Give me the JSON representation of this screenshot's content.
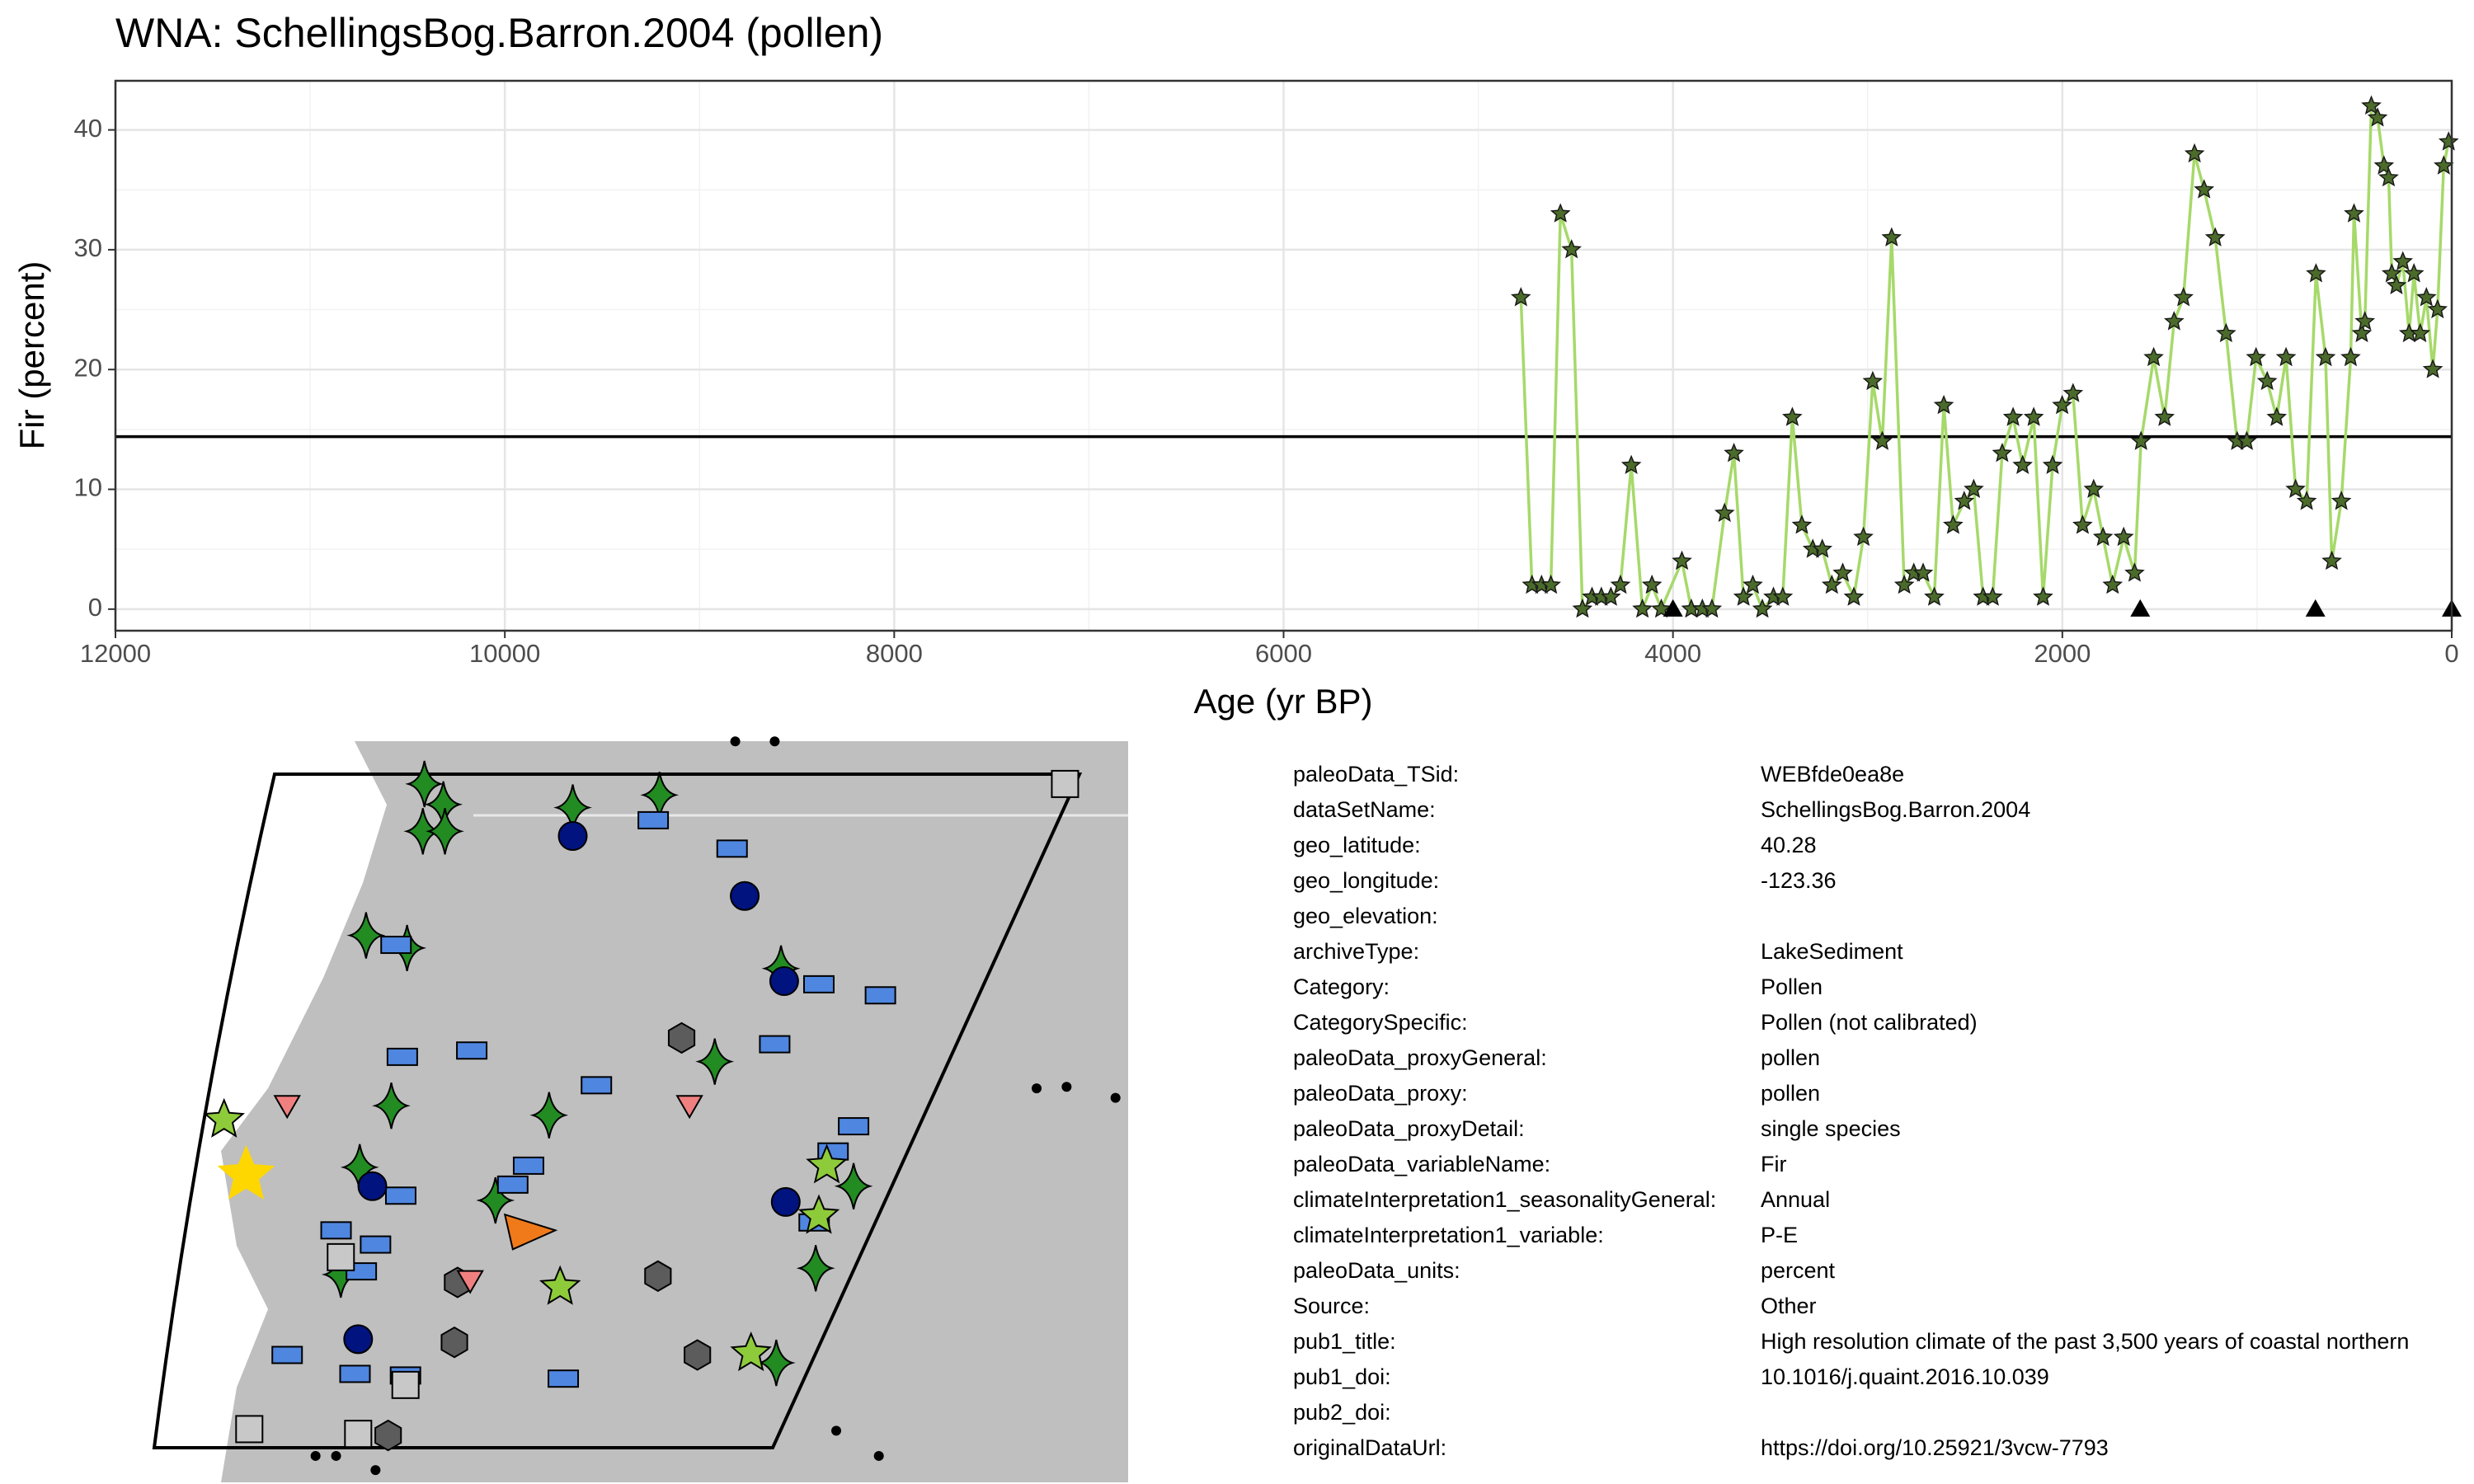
{
  "chart_data": {
    "type": "line",
    "title": "WNA: SchellingsBog.Barron.2004 (pollen)",
    "x_label": "Age (yr BP)",
    "y_label": "Fir (percent)",
    "x": [
      4781,
      4724,
      4675,
      4627,
      4578,
      4521,
      4465,
      4416,
      4368,
      4319,
      4270,
      4214,
      4157,
      4108,
      4060,
      3954,
      3906,
      3849,
      3800,
      3735,
      3687,
      3638,
      3590,
      3541,
      3484,
      3436,
      3387,
      3338,
      3282,
      3233,
      3184,
      3128,
      3071,
      3022,
      2974,
      2925,
      2877,
      2812,
      2763,
      2715,
      2658,
      2609,
      2561,
      2504,
      2455,
      2407,
      2358,
      2309,
      2253,
      2204,
      2147,
      2099,
      2050,
      2001,
      1945,
      1896,
      1839,
      1791,
      1742,
      1685,
      1629,
      1596,
      1531,
      1475,
      1426,
      1378,
      1321,
      1272,
      1215,
      1159,
      1102,
      1053,
      1005,
      948,
      899,
      851,
      802,
      745,
      697,
      648,
      616,
      567,
      519,
      502,
      462,
      446,
      413,
      381,
      348,
      324,
      308,
      284,
      251,
      219,
      194,
      162,
      130,
      97,
      73,
      41,
      16
    ],
    "values": [
      26,
      2,
      2,
      2,
      33,
      30,
      0,
      1,
      1,
      1,
      2,
      12,
      0,
      2,
      0,
      4,
      0,
      0,
      0,
      8,
      13,
      1,
      2,
      0,
      1,
      1,
      16,
      7,
      5,
      5,
      2,
      3,
      1,
      6,
      19,
      14,
      31,
      2,
      3,
      3,
      1,
      17,
      7,
      9,
      10,
      1,
      1,
      13,
      16,
      12,
      16,
      1,
      12,
      17,
      18,
      7,
      10,
      6,
      2,
      6,
      3,
      14,
      21,
      16,
      24,
      26,
      38,
      35,
      31,
      23,
      14,
      14,
      21,
      19,
      16,
      21,
      10,
      9,
      28,
      21,
      4,
      9,
      21,
      33,
      23,
      24,
      42,
      41,
      37,
      36,
      28,
      27,
      29,
      23,
      28,
      23,
      26,
      20,
      25,
      37,
      39
    ],
    "color": "#a6d96a",
    "marker_color": "#4b6b2a",
    "mean": 14.4,
    "age_markers": {
      "x": [
        4000,
        1600,
        700,
        0
      ],
      "values": [
        0,
        0,
        0,
        0
      ]
    },
    "xlim": [
      12000,
      0
    ],
    "xticks": [
      12000,
      10000,
      8000,
      6000,
      4000,
      2000,
      0
    ],
    "ylim": [
      -1.8,
      44.1
    ],
    "yticks": [
      0,
      10,
      20,
      30,
      40
    ],
    "grid": true
  },
  "metadata": {
    "rows": [
      [
        "paleoData_TSid:",
        "WEBfde0ea8e"
      ],
      [
        "dataSetName:",
        "SchellingsBog.Barron.2004"
      ],
      [
        "geo_latitude:",
        "40.28"
      ],
      [
        "geo_longitude:",
        "-123.36"
      ],
      [
        "geo_elevation:"
      ],
      [
        "archiveType:",
        "LakeSediment"
      ],
      [
        "Category:",
        "Pollen"
      ],
      [
        "CategorySpecific:",
        "Pollen (not calibrated)"
      ],
      [
        "paleoData_proxyGeneral:",
        "pollen"
      ],
      [
        "paleoData_proxy:",
        "pollen"
      ],
      [
        "paleoData_proxyDetail:",
        "single species"
      ],
      [
        "paleoData_variableName:",
        "Fir"
      ],
      [
        "climateInterpretation1_seasonalityGeneral:",
        "Annual"
      ],
      [
        "climateInterpretation1_variable:",
        "P-E"
      ],
      [
        "paleoData_units:",
        "percent"
      ],
      [
        "Source:",
        "Other"
      ],
      [
        "pub1_title:",
        "High resolution climate of the past 3,500 years of coastal northern"
      ],
      [
        "pub1_doi:",
        "10.1016/j.quaint.2016.10.039"
      ],
      [
        "pub2_doi:"
      ],
      [
        "originalDataUrl:",
        "https://doi.org/10.25921/3vcw-7793"
      ]
    ]
  }
}
